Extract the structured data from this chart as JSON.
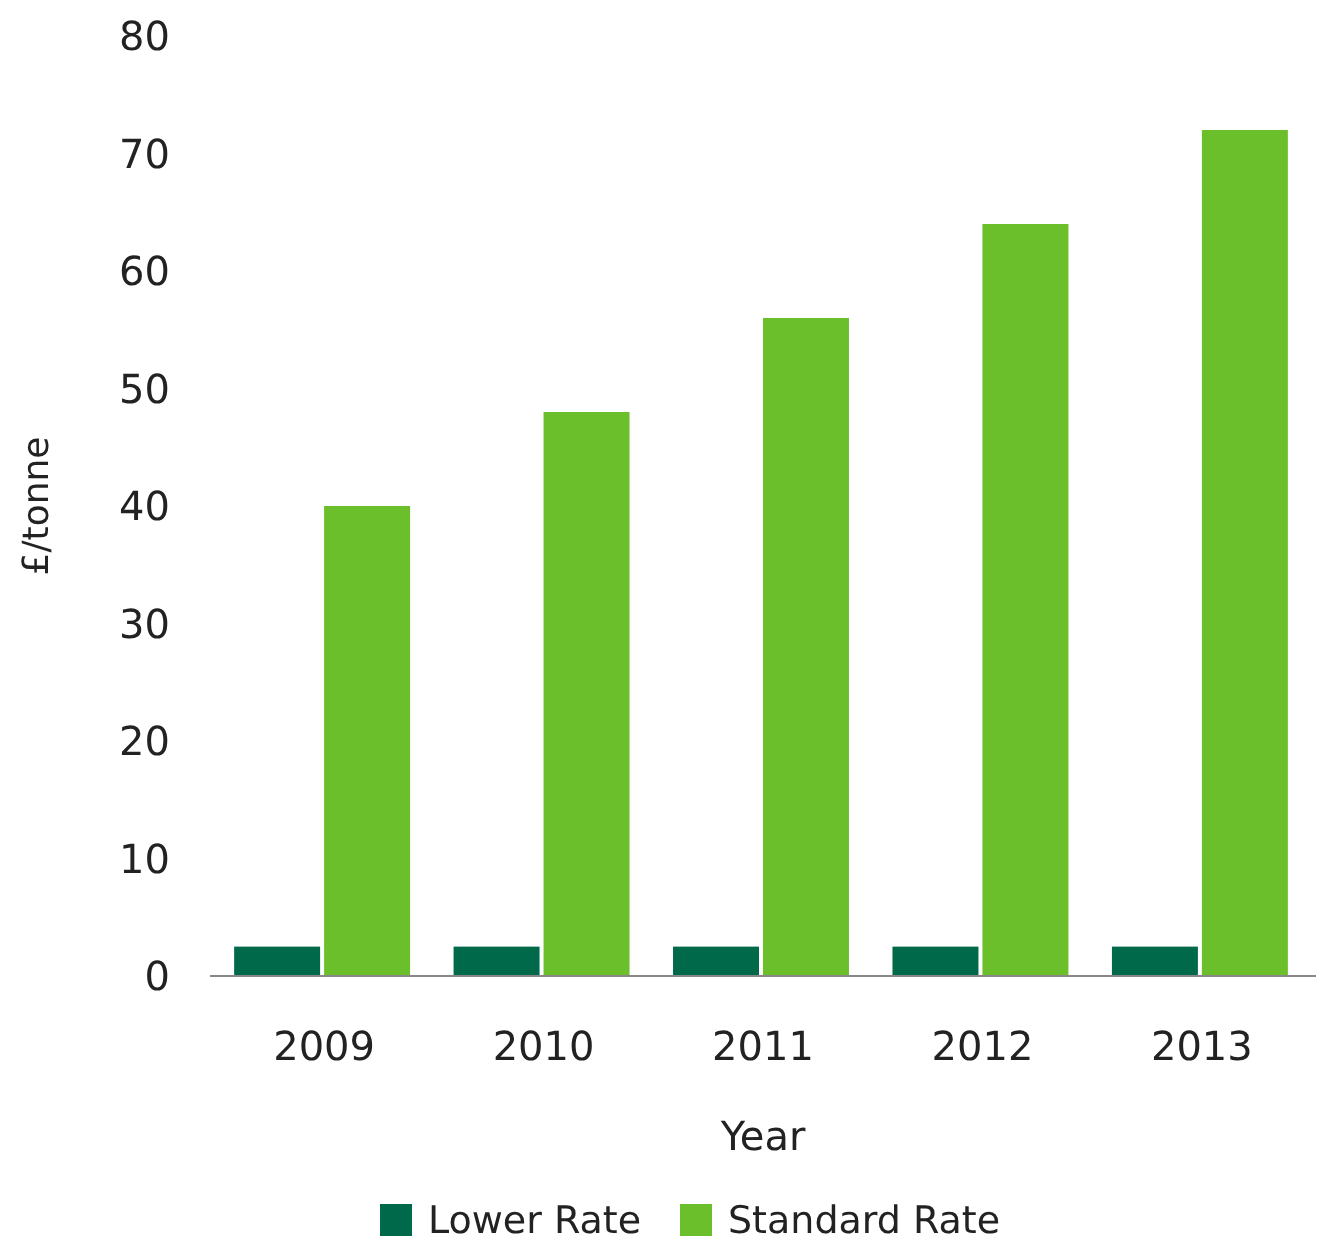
{
  "chart_data": {
    "type": "bar",
    "xlabel": "Year",
    "ylabel": "£/tonne",
    "categories": [
      "2009",
      "2010",
      "2011",
      "2012",
      "2013"
    ],
    "series": [
      {
        "name": "Lower Rate",
        "color": "#00694a",
        "values": [
          2.5,
          2.5,
          2.5,
          2.5,
          2.5
        ]
      },
      {
        "name": "Standard Rate",
        "color": "#6abf2a",
        "values": [
          40,
          48,
          56,
          64,
          72
        ]
      }
    ],
    "ylim": [
      0,
      80
    ],
    "yticks": [
      0,
      10,
      20,
      30,
      40,
      50,
      60,
      70,
      80
    ],
    "grid": false,
    "legend": "bottom"
  }
}
